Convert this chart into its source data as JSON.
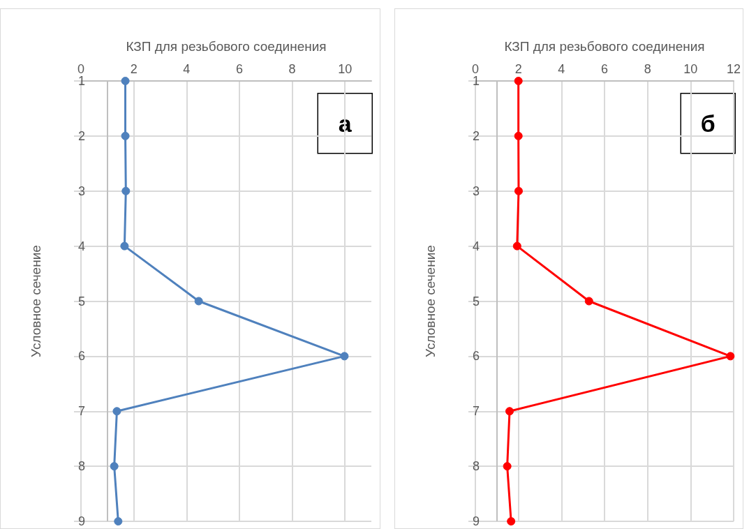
{
  "chart_data": [
    {
      "type": "line",
      "orientation": "horizontal",
      "xlabel": "КЗП для резьбового соединения",
      "ylabel": "Условное сечение",
      "categories": [
        "1",
        "2",
        "3",
        "4",
        "5",
        "6",
        "7",
        "8",
        "9"
      ],
      "series": [
        {
          "color": "#4f81bd",
          "values": [
            1.68,
            1.68,
            1.7,
            1.65,
            4.46,
            9.98,
            1.36,
            1.26,
            1.41
          ]
        }
      ],
      "xlim": [
        0,
        11
      ],
      "xticks": [
        0,
        2,
        4,
        6,
        8,
        10
      ],
      "grid": true,
      "marker": "circle",
      "line_style": "solid",
      "ref_lines": [
        {
          "axis": "x",
          "value": 1,
          "color": "#bfbfbf"
        }
      ],
      "annotations": [
        "а"
      ]
    },
    {
      "type": "line",
      "orientation": "horizontal",
      "xlabel": "КЗП для резьбового соединения",
      "ylabel": "Условное сечение",
      "categories": [
        "1",
        "2",
        "3",
        "4",
        "5",
        "6",
        "7",
        "8",
        "9"
      ],
      "series": [
        {
          "color": "#ff0000",
          "values": [
            2.0,
            2.0,
            2.01,
            1.94,
            5.28,
            11.85,
            1.59,
            1.48,
            1.66
          ]
        }
      ],
      "xlim": [
        0,
        12
      ],
      "xticks": [
        0,
        2,
        4,
        6,
        8,
        10,
        12
      ],
      "grid": true,
      "marker": "circle",
      "line_style": "solid",
      "ref_lines": [
        {
          "axis": "x",
          "value": 1,
          "color": "#bfbfbf"
        }
      ],
      "annotations": [
        "б"
      ]
    }
  ]
}
